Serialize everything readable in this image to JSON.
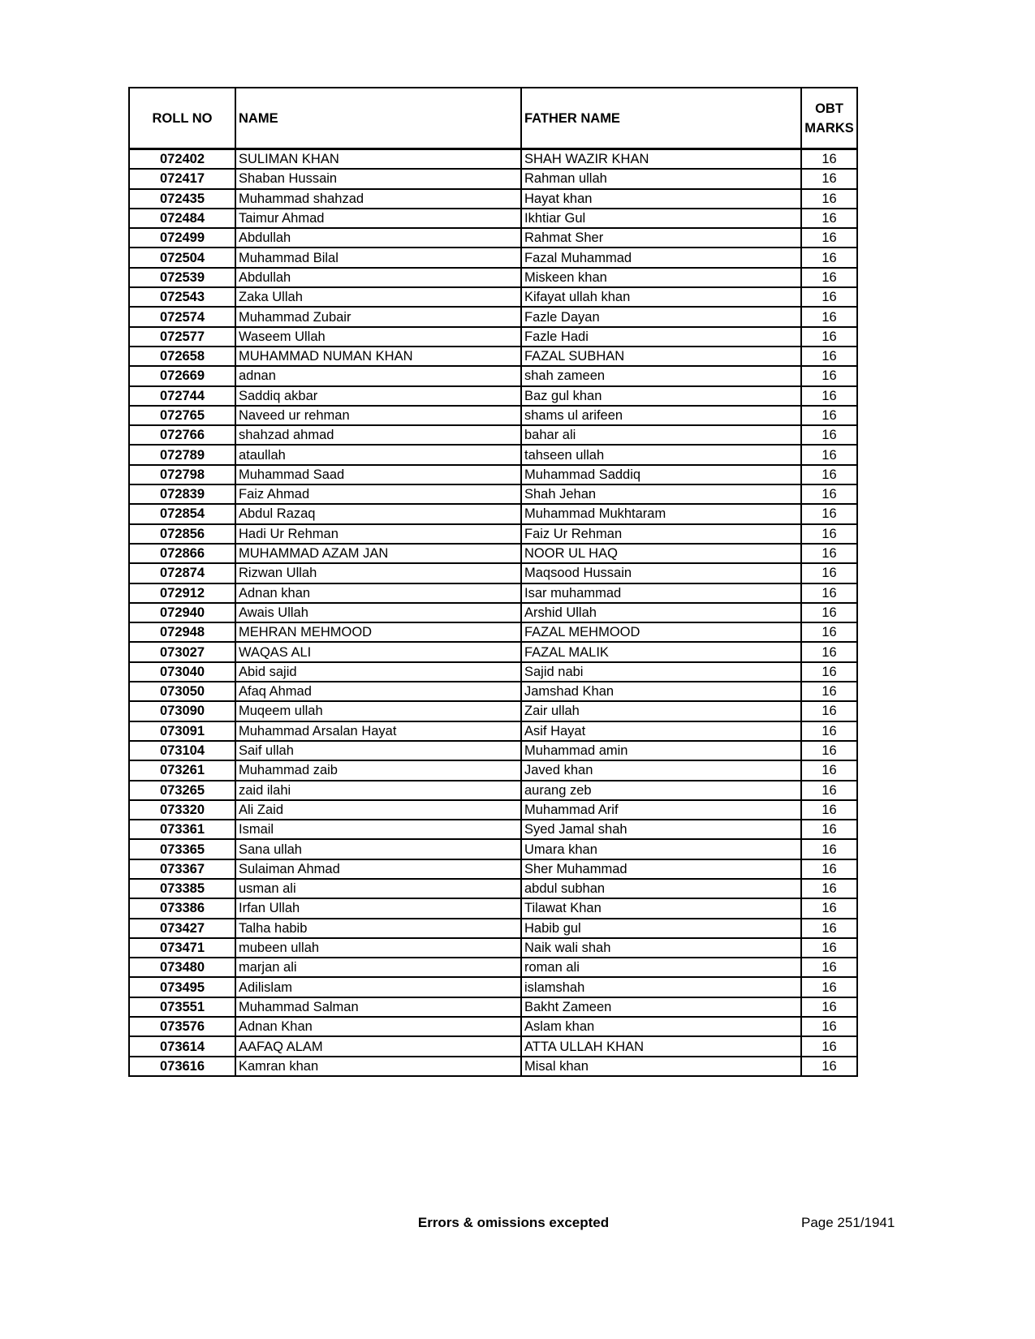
{
  "table": {
    "headers": {
      "roll_no": "ROLL NO",
      "name": "NAME",
      "father_name": "FATHER NAME",
      "marks_line1": "OBT",
      "marks_line2": "MARKS"
    },
    "rows": [
      [
        "072402",
        "SULIMAN KHAN",
        "SHAH WAZIR KHAN",
        "16"
      ],
      [
        "072417",
        "Shaban Hussain",
        "Rahman ullah",
        "16"
      ],
      [
        "072435",
        "Muhammad shahzad",
        "Hayat khan",
        "16"
      ],
      [
        "072484",
        "Taimur Ahmad",
        "Ikhtiar Gul",
        "16"
      ],
      [
        "072499",
        "Abdullah",
        "Rahmat Sher",
        "16"
      ],
      [
        "072504",
        "Muhammad Bilal",
        "Fazal Muhammad",
        "16"
      ],
      [
        "072539",
        "Abdullah",
        "Miskeen khan",
        "16"
      ],
      [
        "072543",
        "Zaka Ullah",
        "Kifayat ullah khan",
        "16"
      ],
      [
        "072574",
        "Muhammad Zubair",
        "Fazle Dayan",
        "16"
      ],
      [
        "072577",
        "Waseem Ullah",
        "Fazle Hadi",
        "16"
      ],
      [
        "072658",
        "MUHAMMAD NUMAN KHAN",
        "FAZAL SUBHAN",
        "16"
      ],
      [
        "072669",
        "adnan",
        "shah zameen",
        "16"
      ],
      [
        "072744",
        "Saddiq akbar",
        "Baz gul khan",
        "16"
      ],
      [
        "072765",
        "Naveed ur rehman",
        "shams ul arifeen",
        "16"
      ],
      [
        "072766",
        "shahzad ahmad",
        "bahar ali",
        "16"
      ],
      [
        "072789",
        "ataullah",
        "tahseen ullah",
        "16"
      ],
      [
        "072798",
        "Muhammad Saad",
        "Muhammad Saddiq",
        "16"
      ],
      [
        "072839",
        "Faiz Ahmad",
        "Shah Jehan",
        "16"
      ],
      [
        "072854",
        "Abdul Razaq",
        "Muhammad Mukhtaram",
        "16"
      ],
      [
        "072856",
        "Hadi Ur Rehman",
        "Faiz Ur Rehman",
        "16"
      ],
      [
        "072866",
        "MUHAMMAD AZAM JAN",
        "NOOR UL HAQ",
        "16"
      ],
      [
        "072874",
        "Rizwan Ullah",
        "Maqsood Hussain",
        "16"
      ],
      [
        "072912",
        "Adnan khan",
        "Isar muhammad",
        "16"
      ],
      [
        "072940",
        "Awais Ullah",
        "Arshid Ullah",
        "16"
      ],
      [
        "072948",
        "MEHRAN MEHMOOD",
        "FAZAL MEHMOOD",
        "16"
      ],
      [
        "073027",
        "WAQAS ALI",
        "FAZAL MALIK",
        "16"
      ],
      [
        "073040",
        "Abid sajid",
        "Sajid nabi",
        "16"
      ],
      [
        "073050",
        "Afaq Ahmad",
        "Jamshad Khan",
        "16"
      ],
      [
        "073090",
        "Muqeem ullah",
        "Zair ullah",
        "16"
      ],
      [
        "073091",
        "Muhammad Arsalan Hayat",
        "Asif Hayat",
        "16"
      ],
      [
        "073104",
        "Saif ullah",
        "Muhammad amin",
        "16"
      ],
      [
        "073261",
        "Muhammad zaib",
        "Javed khan",
        "16"
      ],
      [
        "073265",
        "zaid ilahi",
        "aurang zeb",
        "16"
      ],
      [
        "073320",
        "Ali Zaid",
        "Muhammad Arif",
        "16"
      ],
      [
        "073361",
        "Ismail",
        "Syed Jamal shah",
        "16"
      ],
      [
        "073365",
        "Sana ullah",
        "Umara khan",
        "16"
      ],
      [
        "073367",
        "Sulaiman Ahmad",
        "Sher Muhammad",
        "16"
      ],
      [
        "073385",
        "usman ali",
        "abdul subhan",
        "16"
      ],
      [
        "073386",
        "Irfan Ullah",
        "Tilawat Khan",
        "16"
      ],
      [
        "073427",
        "Talha habib",
        "Habib gul",
        "16"
      ],
      [
        "073471",
        "mubeen ullah",
        "Naik wali shah",
        "16"
      ],
      [
        "073480",
        "marjan ali",
        "roman ali",
        "16"
      ],
      [
        "073495",
        "Adilislam",
        "islamshah",
        "16"
      ],
      [
        "073551",
        "Muhammad Salman",
        "Bakht Zameen",
        "16"
      ],
      [
        "073576",
        "Adnan Khan",
        "Aslam khan",
        "16"
      ],
      [
        "073614",
        "AAFAQ ALAM",
        "ATTA ULLAH KHAN",
        "16"
      ],
      [
        "073616",
        "Kamran khan",
        "Misal khan",
        "16"
      ]
    ]
  },
  "footer": {
    "disclaimer": "Errors & omissions excepted",
    "page": "Page 251/1941"
  }
}
